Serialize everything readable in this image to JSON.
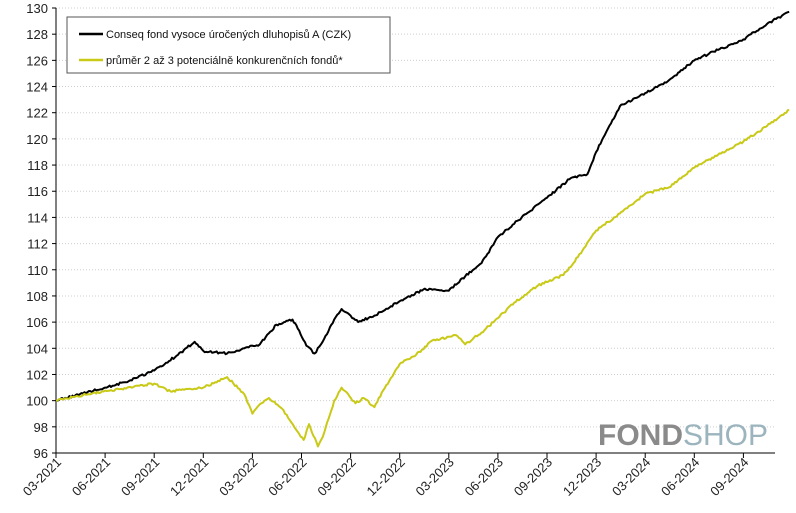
{
  "logo": {
    "part1": "FOND",
    "part2": "SHOP",
    "part1_color": "#8a8a8a",
    "part2_color": "#9bb4bd"
  },
  "chart_data": {
    "type": "line",
    "title": "",
    "xlabel": "",
    "ylabel": "",
    "ylim": [
      96,
      130
    ],
    "yticks": [
      96,
      98,
      100,
      102,
      104,
      106,
      108,
      110,
      112,
      114,
      116,
      118,
      120,
      122,
      124,
      126,
      128,
      130
    ],
    "x_tick_labels": [
      "03-2021",
      "06-2021",
      "09-2021",
      "12-2021",
      "03-2022",
      "06-2022",
      "09-2022",
      "12-2022",
      "03-2023",
      "06-2023",
      "09-2023",
      "12-2023",
      "03-2024",
      "06-2024",
      "09-2024"
    ],
    "grid": "horizontal dotted",
    "legend_position": "top-left",
    "series": [
      {
        "name": "Conseq fond vysoce úročených dluhopisů A (CZK)",
        "color": "#000000",
        "x": [
          "2021-03-01",
          "2021-04-15",
          "2021-06-01",
          "2021-07-15",
          "2021-09-01",
          "2021-10-15",
          "2021-11-15",
          "2021-12-01",
          "2022-01-15",
          "2022-02-15",
          "2022-03-15",
          "2022-04-15",
          "2022-05-15",
          "2022-05-25",
          "2022-06-10",
          "2022-06-25",
          "2022-07-10",
          "2022-08-01",
          "2022-08-15",
          "2022-09-01",
          "2022-09-15",
          "2022-10-15",
          "2022-12-01",
          "2023-01-15",
          "2023-03-01",
          "2023-04-01",
          "2023-05-01",
          "2023-06-01",
          "2023-07-15",
          "2023-09-01",
          "2023-10-15",
          "2023-11-15",
          "2023-12-01",
          "2024-01-15",
          "2024-03-01",
          "2024-04-15",
          "2024-06-01",
          "2024-07-15",
          "2024-09-01",
          "2024-10-15",
          "2024-11-25"
        ],
        "y": [
          100.0,
          100.5,
          101.0,
          101.5,
          102.3,
          103.5,
          104.5,
          103.8,
          103.6,
          104.0,
          104.3,
          105.8,
          106.2,
          105.5,
          104.2,
          103.6,
          104.5,
          106.2,
          107.0,
          106.5,
          106.0,
          106.5,
          107.6,
          108.5,
          108.4,
          109.5,
          110.5,
          112.5,
          114.0,
          115.5,
          117.0,
          117.3,
          119.0,
          122.5,
          123.5,
          124.5,
          126.0,
          126.8,
          127.6,
          128.8,
          129.7
        ]
      },
      {
        "name": "průměr 2 až 3 potenciálně konkurenčních fondů*",
        "color": "#c9c918",
        "x": [
          "2021-03-01",
          "2021-05-01",
          "2021-07-01",
          "2021-09-01",
          "2021-10-01",
          "2021-11-01",
          "2021-12-01",
          "2022-01-15",
          "2022-02-15",
          "2022-03-01",
          "2022-03-10",
          "2022-04-01",
          "2022-04-25",
          "2022-05-10",
          "2022-06-05",
          "2022-06-15",
          "2022-07-01",
          "2022-07-10",
          "2022-08-01",
          "2022-08-15",
          "2022-09-10",
          "2022-09-25",
          "2022-10-15",
          "2022-11-01",
          "2022-12-01",
          "2023-01-01",
          "2023-02-01",
          "2023-03-15",
          "2023-04-01",
          "2023-05-01",
          "2023-06-01",
          "2023-07-01",
          "2023-08-15",
          "2023-10-01",
          "2023-10-20",
          "2023-12-01",
          "2024-01-15",
          "2024-03-01",
          "2024-04-15",
          "2024-06-01",
          "2024-07-15",
          "2024-09-01",
          "2024-10-15",
          "2024-11-25"
        ],
        "y": [
          100.0,
          100.5,
          100.9,
          101.3,
          100.7,
          100.9,
          101.0,
          101.8,
          100.5,
          99.0,
          99.5,
          100.2,
          99.4,
          98.5,
          97.0,
          98.2,
          96.5,
          97.2,
          100.0,
          101.0,
          99.8,
          100.2,
          99.5,
          100.8,
          102.8,
          103.5,
          104.6,
          105.0,
          104.3,
          105.2,
          106.3,
          107.5,
          108.8,
          109.6,
          110.5,
          113.0,
          114.3,
          115.8,
          116.3,
          117.8,
          118.8,
          119.8,
          121.0,
          122.2
        ]
      }
    ]
  }
}
